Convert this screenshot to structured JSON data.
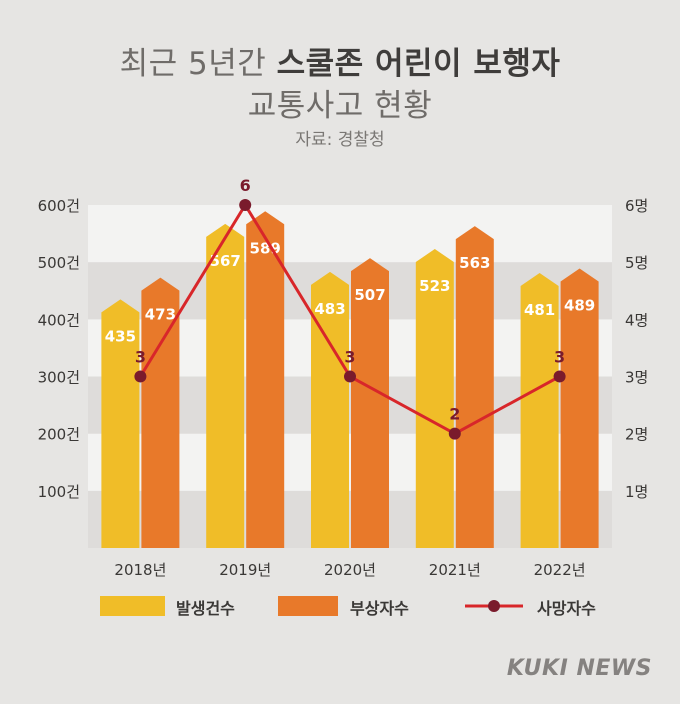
{
  "title": {
    "line1_pre": "최근 5년간 ",
    "line1_hl": "스쿨존 어린이 보행자",
    "line2": "교통사고 현황"
  },
  "source": "자료: 경찰청",
  "chart_data": {
    "type": "bar",
    "categories": [
      "2018년",
      "2019년",
      "2020년",
      "2021년",
      "2022년"
    ],
    "series": [
      {
        "name": "발생건수",
        "type": "bar",
        "axis": "left",
        "color": "#f0bd28",
        "values": [
          435,
          567,
          483,
          523,
          481
        ]
      },
      {
        "name": "부상자수",
        "type": "bar",
        "axis": "left",
        "color": "#e8792a",
        "values": [
          473,
          589,
          507,
          563,
          489
        ]
      },
      {
        "name": "사망자수",
        "type": "line",
        "axis": "right",
        "color": "#d8262a",
        "values": [
          3,
          6,
          3,
          2,
          3
        ]
      }
    ],
    "yleft": {
      "ticks": [
        "100건",
        "200건",
        "300건",
        "400건",
        "500건",
        "600건"
      ],
      "range": [
        0,
        600
      ]
    },
    "yright": {
      "ticks": [
        "1명",
        "2명",
        "3명",
        "4명",
        "5명",
        "6명"
      ],
      "range": [
        0,
        6
      ]
    },
    "legend": "bottom"
  },
  "brand": "KUKI NEWS"
}
